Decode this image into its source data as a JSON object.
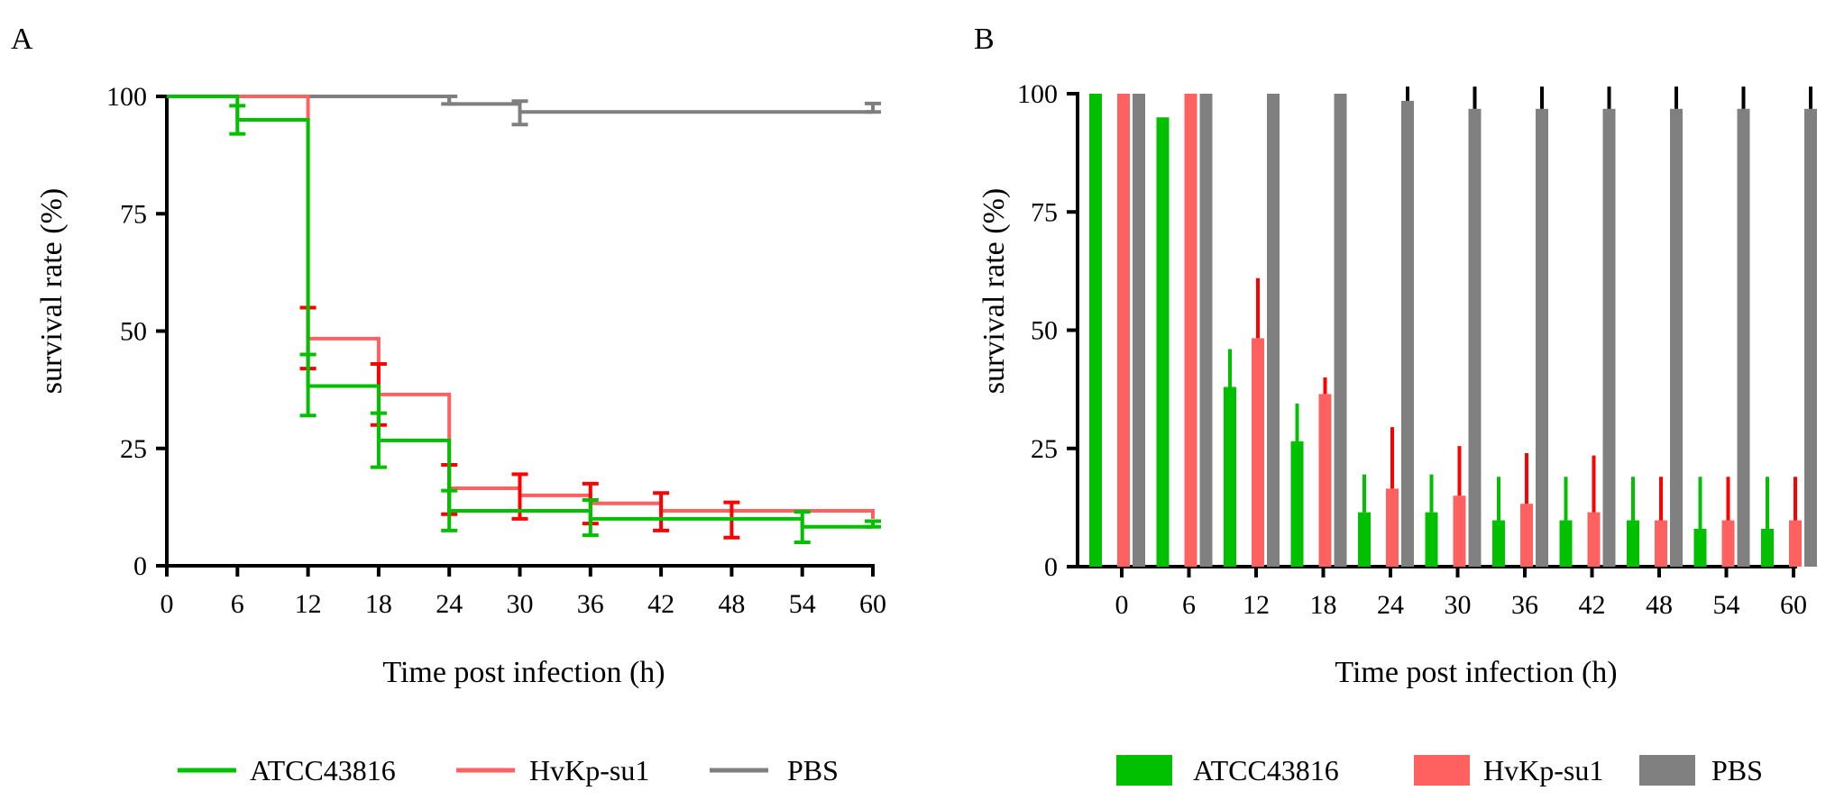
{
  "panels": {
    "a": {
      "label": "A"
    },
    "b": {
      "label": "B"
    }
  },
  "legend_a": [
    {
      "name": "ATCC43816",
      "color": "#00c000"
    },
    {
      "name": "HvKp-su1",
      "color": "#ff6060"
    },
    {
      "name": "PBS",
      "color": "#7f7f7f"
    }
  ],
  "legend_b": [
    {
      "name": "ATCC43816",
      "color": "#00c000"
    },
    {
      "name": "HvKp-su1",
      "color": "#ff6060"
    },
    {
      "name": "PBS",
      "color": "#808080"
    }
  ],
  "chart_data": [
    {
      "panel": "A",
      "type": "line",
      "step": true,
      "xlabel": "Time post infection (h)",
      "ylabel": "survival rate (%)",
      "xlim": [
        0,
        60
      ],
      "ylim": [
        0,
        100
      ],
      "xticks": [
        0,
        6,
        12,
        18,
        24,
        30,
        36,
        42,
        48,
        54,
        60
      ],
      "yticks": [
        0,
        25,
        50,
        75,
        100
      ],
      "series": [
        {
          "name": "PBS",
          "color": "#7f7f7f",
          "error_color": "#7f7f7f",
          "x": [
            0,
            24,
            30,
            60
          ],
          "y": [
            100,
            98.4,
            96.7,
            96.7
          ],
          "errors": [
            {
              "x": 24,
              "low": 98.4,
              "high": 100
            },
            {
              "x": 30,
              "low": 94,
              "high": 99
            },
            {
              "x": 60,
              "low": 96.7,
              "high": 98.5
            }
          ]
        },
        {
          "name": "HvKp-su1",
          "color": "#ff6060",
          "error_color": "#ff0000",
          "x": [
            0,
            12,
            18,
            24,
            30,
            36,
            42,
            60
          ],
          "y": [
            100,
            48.4,
            36.5,
            16.5,
            15,
            13.3,
            11.7,
            10
          ],
          "errors": [
            {
              "x": 12,
              "low": 42,
              "high": 55
            },
            {
              "x": 18,
              "low": 30,
              "high": 43
            },
            {
              "x": 24,
              "low": 11,
              "high": 21.5
            },
            {
              "x": 30,
              "low": 10,
              "high": 19.5
            },
            {
              "x": 36,
              "low": 9,
              "high": 17.5
            },
            {
              "x": 42,
              "low": 7.5,
              "high": 15.5
            },
            {
              "x": 48,
              "low": 6,
              "high": 13.5
            }
          ]
        },
        {
          "name": "ATCC43816",
          "color": "#00c000",
          "error_color": "#00c000",
          "x": [
            0,
            6,
            12,
            18,
            24,
            36,
            54,
            60
          ],
          "y": [
            100,
            95,
            38.3,
            26.7,
            11.7,
            10,
            8.3,
            8.3
          ],
          "errors": [
            {
              "x": 6,
              "low": 92,
              "high": 98
            },
            {
              "x": 12,
              "low": 32,
              "high": 45
            },
            {
              "x": 18,
              "low": 21,
              "high": 32.5
            },
            {
              "x": 24,
              "low": 7.5,
              "high": 16
            },
            {
              "x": 36,
              "low": 6.5,
              "high": 14
            },
            {
              "x": 54,
              "low": 5,
              "high": 11.5
            },
            {
              "x": 60,
              "low": 8.3,
              "high": 9.5
            }
          ]
        }
      ]
    },
    {
      "panel": "B",
      "type": "bar",
      "xlabel": "Time post infection (h)",
      "ylabel": "survival rate (%)",
      "ylim": [
        0,
        100
      ],
      "yticks": [
        0,
        25,
        50,
        75,
        100
      ],
      "categories": [
        "0",
        "6",
        "12",
        "18",
        "24",
        "30",
        "36",
        "42",
        "48",
        "54",
        "60"
      ],
      "series": [
        {
          "name": "ATCC43816",
          "color": "#00c000",
          "values": [
            100,
            95,
            38,
            26.5,
            11.5,
            11.5,
            9.8,
            9.8,
            9.8,
            8,
            8
          ],
          "error_high": [
            100,
            95,
            46,
            34.5,
            19.5,
            19.5,
            19,
            19,
            19,
            19,
            19
          ]
        },
        {
          "name": "HvKp-su1",
          "color": "#ff6060",
          "error_color": "#ff0000",
          "values": [
            100,
            100,
            48.3,
            36.5,
            16.5,
            15,
            13.3,
            11.5,
            9.8,
            9.8,
            9.8
          ],
          "error_high": [
            100,
            100,
            61,
            40,
            29.5,
            25.5,
            24,
            23.5,
            19,
            19,
            19
          ]
        },
        {
          "name": "PBS",
          "color": "#808080",
          "error_color": "#000000",
          "values": [
            100,
            100,
            100,
            100,
            98.5,
            96.8,
            96.8,
            96.8,
            96.8,
            96.8,
            96.8
          ],
          "error_high": [
            100,
            100,
            100,
            100,
            101.5,
            101.5,
            101.5,
            101.5,
            101.5,
            101.5,
            101.5
          ]
        }
      ]
    }
  ]
}
